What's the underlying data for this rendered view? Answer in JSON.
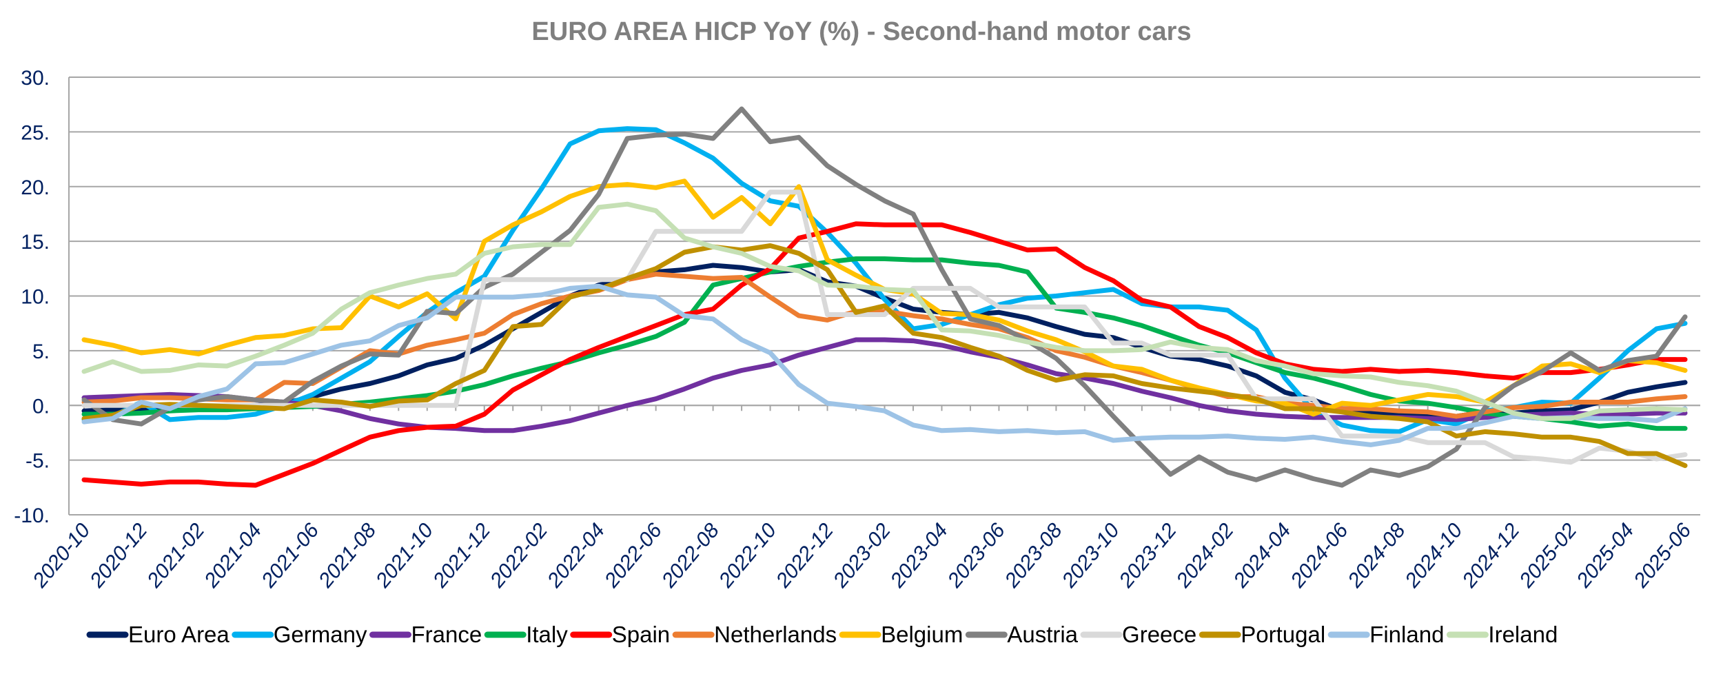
{
  "chart_data": {
    "type": "line",
    "title": "EURO AREA HICP YoY (%)  - Second-hand motor cars",
    "xlabel": "",
    "ylabel": "",
    "ylim": [
      -10,
      30
    ],
    "yticks": [
      30,
      25,
      20,
      15,
      10,
      5,
      0,
      -5,
      -10
    ],
    "ytick_labels": [
      "30.",
      "25.",
      "20.",
      "15.",
      "10.",
      "5.",
      "0.",
      "-5.",
      "-10."
    ],
    "grid": true,
    "legend_position": "bottom",
    "x": [
      "2020-10",
      "2020-11",
      "2020-12",
      "2021-01",
      "2021-02",
      "2021-03",
      "2021-04",
      "2021-05",
      "2021-06",
      "2021-07",
      "2021-08",
      "2021-09",
      "2021-10",
      "2021-11",
      "2021-12",
      "2022-01",
      "2022-02",
      "2022-03",
      "2022-04",
      "2022-05",
      "2022-06",
      "2022-07",
      "2022-08",
      "2022-09",
      "2022-10",
      "2022-11",
      "2022-12",
      "2023-01",
      "2023-02",
      "2023-03",
      "2023-04",
      "2023-05",
      "2023-06",
      "2023-07",
      "2023-08",
      "2023-09",
      "2023-10",
      "2023-11",
      "2023-12",
      "2024-01",
      "2024-02",
      "2024-03",
      "2024-04",
      "2024-05",
      "2024-06",
      "2024-07",
      "2024-08",
      "2024-09",
      "2024-10",
      "2024-11",
      "2024-12",
      "2025-01",
      "2025-02",
      "2025-03",
      "2025-04",
      "2025-05",
      "2025-06"
    ],
    "xtick_labels": [
      "2020-10",
      "2020-12",
      "2021-02",
      "2021-04",
      "2021-06",
      "2021-08",
      "2021-10",
      "2021-12",
      "2022-02",
      "2022-04",
      "2022-06",
      "2022-08",
      "2022-10",
      "2022-12",
      "2023-02",
      "2023-04",
      "2023-06",
      "2023-08",
      "2023-10",
      "2023-12",
      "2024-02",
      "2024-04",
      "2024-06",
      "2024-08",
      "2024-10",
      "2024-12",
      "2025-02",
      "2025-04",
      "2025-06"
    ],
    "series": [
      {
        "name": "Euro Area",
        "color": "#002060",
        "values": [
          -0.5,
          -0.4,
          -0.3,
          -0.3,
          -0.2,
          -0.1,
          0.0,
          0.2,
          0.8,
          1.5,
          2.0,
          2.7,
          3.7,
          4.3,
          5.5,
          7.0,
          8.5,
          10.0,
          11.0,
          11.5,
          12.2,
          12.4,
          12.8,
          12.6,
          12.2,
          12.4,
          11.3,
          10.9,
          9.8,
          8.8,
          8.5,
          8.3,
          8.5,
          8.0,
          7.2,
          6.5,
          6.2,
          5.3,
          4.5,
          4.2,
          3.6,
          2.7,
          1.2,
          0.5,
          -0.5,
          -0.6,
          -0.8,
          -0.9,
          -1.0,
          -0.6,
          -0.7,
          -0.5,
          -0.4,
          0.3,
          1.2,
          1.7,
          2.1
        ]
      },
      {
        "name": "Germany",
        "color": "#00B0F0",
        "values": [
          -1.3,
          -1.0,
          0.3,
          -1.3,
          -1.1,
          -1.1,
          -0.8,
          0.0,
          1.0,
          2.5,
          4.0,
          6.3,
          8.5,
          10.3,
          11.8,
          16.0,
          19.8,
          23.9,
          25.1,
          25.3,
          25.2,
          24.0,
          22.6,
          20.3,
          18.7,
          18.2,
          15.8,
          13.0,
          9.7,
          7.0,
          7.4,
          8.3,
          9.2,
          9.8,
          10.0,
          10.3,
          10.6,
          9.3,
          9.0,
          9.0,
          8.7,
          6.9,
          2.5,
          -0.5,
          -1.8,
          -2.3,
          -2.4,
          -1.3,
          -1.7,
          -0.5,
          -0.2,
          0.3,
          0.2,
          2.5,
          5.0,
          7.0,
          7.5
        ]
      },
      {
        "name": "France",
        "color": "#7030A0",
        "values": [
          0.7,
          0.8,
          0.9,
          1.0,
          0.9,
          0.8,
          0.5,
          0.3,
          0.0,
          -0.5,
          -1.2,
          -1.7,
          -2.0,
          -2.1,
          -2.3,
          -2.3,
          -1.9,
          -1.4,
          -0.7,
          0.0,
          0.6,
          1.5,
          2.5,
          3.2,
          3.7,
          4.6,
          5.3,
          6.0,
          6.0,
          5.9,
          5.5,
          4.9,
          4.4,
          3.7,
          2.9,
          2.5,
          2.0,
          1.3,
          0.7,
          0.0,
          -0.5,
          -0.8,
          -1.0,
          -1.1,
          -1.1,
          -1.1,
          -1.1,
          -1.2,
          -1.3,
          -1.1,
          -0.9,
          -0.8,
          -0.7,
          -0.8,
          -0.8,
          -0.7,
          -0.7
        ]
      },
      {
        "name": "Italy",
        "color": "#00B050",
        "values": [
          -0.8,
          -0.8,
          -0.7,
          -0.5,
          -0.4,
          -0.4,
          -0.3,
          -0.2,
          -0.1,
          0.1,
          0.3,
          0.6,
          0.9,
          1.3,
          1.9,
          2.7,
          3.4,
          4.0,
          4.8,
          5.5,
          6.3,
          7.6,
          11.0,
          11.6,
          12.2,
          12.7,
          13.1,
          13.4,
          13.4,
          13.3,
          13.3,
          13.0,
          12.8,
          12.2,
          8.9,
          8.5,
          8.0,
          7.3,
          6.4,
          5.5,
          4.8,
          3.9,
          3.0,
          2.5,
          1.8,
          1.0,
          0.4,
          0.2,
          -0.2,
          -0.7,
          -1.0,
          -1.2,
          -1.5,
          -1.9,
          -1.7,
          -2.1,
          -2.1
        ]
      },
      {
        "name": "Spain",
        "color": "#FF0000",
        "values": [
          -6.8,
          -7.0,
          -7.2,
          -7.0,
          -7.0,
          -7.2,
          -7.3,
          -6.3,
          -5.3,
          -4.1,
          -2.9,
          -2.3,
          -2.0,
          -1.9,
          -0.8,
          1.4,
          2.8,
          4.2,
          5.3,
          6.3,
          7.3,
          8.3,
          8.8,
          11.0,
          12.5,
          15.3,
          15.9,
          16.6,
          16.5,
          16.5,
          16.5,
          15.8,
          15.0,
          14.2,
          14.3,
          12.6,
          11.4,
          9.6,
          9.0,
          7.2,
          6.2,
          4.8,
          3.8,
          3.3,
          3.1,
          3.3,
          3.1,
          3.2,
          3.0,
          2.7,
          2.5,
          3.0,
          3.0,
          3.3,
          3.7,
          4.2,
          4.2
        ]
      },
      {
        "name": "Netherlands",
        "color": "#ED7D31",
        "values": [
          0.3,
          0.4,
          0.7,
          0.7,
          0.6,
          0.5,
          0.5,
          2.1,
          2.0,
          3.5,
          5.0,
          4.7,
          5.5,
          6.0,
          6.6,
          8.3,
          9.3,
          10.0,
          10.5,
          11.5,
          12.0,
          11.8,
          11.6,
          11.7,
          9.9,
          8.2,
          7.8,
          8.6,
          8.6,
          8.2,
          7.9,
          7.4,
          7.0,
          6.2,
          5.0,
          4.4,
          3.6,
          3.0,
          2.3,
          1.5,
          0.8,
          0.8,
          0.2,
          0.0,
          -0.3,
          -0.3,
          -0.5,
          -0.6,
          -1.0,
          -0.6,
          -0.2,
          -0.1,
          0.3,
          0.3,
          0.3,
          0.6,
          0.8
        ]
      },
      {
        "name": "Belgium",
        "color": "#FFC000",
        "values": [
          6.0,
          5.5,
          4.8,
          5.1,
          4.7,
          5.5,
          6.2,
          6.4,
          7.0,
          7.1,
          10.0,
          9.0,
          10.2,
          7.9,
          15.0,
          16.5,
          17.7,
          19.1,
          20.0,
          20.2,
          19.9,
          20.5,
          17.2,
          19.0,
          16.6,
          20.0,
          13.3,
          11.9,
          10.6,
          10.2,
          8.4,
          8.3,
          7.8,
          6.8,
          6.0,
          4.9,
          3.6,
          3.3,
          2.3,
          1.6,
          1.0,
          0.4,
          0.2,
          -0.8,
          0.2,
          0.0,
          0.5,
          1.0,
          0.8,
          0.3,
          1.8,
          3.6,
          3.8,
          3.0,
          4.1,
          3.9,
          3.2
        ]
      },
      {
        "name": "Austria",
        "color": "#808080",
        "values": [
          0.5,
          -1.3,
          -1.7,
          -0.2,
          0.5,
          0.8,
          0.5,
          0.3,
          2.2,
          3.6,
          4.7,
          4.6,
          8.6,
          8.4,
          10.8,
          12.0,
          14.0,
          16.0,
          19.3,
          24.4,
          24.7,
          24.8,
          24.4,
          27.1,
          24.1,
          24.5,
          21.9,
          20.2,
          18.7,
          17.5,
          12.4,
          7.9,
          7.3,
          5.9,
          4.3,
          1.8,
          -1.0,
          -3.7,
          -6.3,
          -4.7,
          -6.1,
          -6.8,
          -5.9,
          -6.7,
          -7.3,
          -5.9,
          -6.4,
          -5.6,
          -4.0,
          -0.2,
          1.8,
          3.1,
          4.8,
          3.2,
          4.1,
          4.5,
          8.1
        ]
      },
      {
        "name": "Greece",
        "color": "#D9D9D9",
        "values": [
          0.0,
          0.0,
          0.0,
          0.0,
          0.0,
          0.0,
          0.0,
          0.0,
          0.0,
          0.0,
          0.0,
          0.0,
          0.0,
          0.0,
          11.5,
          11.5,
          11.5,
          11.5,
          11.5,
          11.5,
          15.9,
          15.9,
          15.9,
          15.9,
          19.5,
          19.5,
          8.3,
          8.3,
          8.3,
          10.7,
          10.7,
          10.7,
          9.0,
          9.0,
          9.0,
          9.0,
          5.7,
          5.7,
          4.6,
          4.6,
          4.6,
          0.6,
          0.6,
          0.6,
          -2.8,
          -2.8,
          -2.8,
          -3.4,
          -3.4,
          -3.4,
          -4.7,
          -4.9,
          -5.2,
          -3.9,
          -4.2,
          -4.9,
          -4.5
        ]
      },
      {
        "name": "Portugal",
        "color": "#BF9000",
        "values": [
          -1.2,
          -0.9,
          0.0,
          0.1,
          0.0,
          -0.1,
          -0.2,
          -0.3,
          0.5,
          0.3,
          -0.1,
          0.4,
          0.5,
          2.0,
          3.2,
          7.2,
          7.4,
          9.9,
          10.6,
          11.6,
          12.5,
          14.0,
          14.5,
          14.2,
          14.6,
          13.9,
          12.4,
          8.5,
          9.1,
          6.6,
          6.2,
          5.3,
          4.5,
          3.2,
          2.3,
          2.8,
          2.7,
          2.0,
          1.6,
          1.3,
          1.0,
          0.6,
          -0.3,
          -0.3,
          -0.6,
          -1.0,
          -1.2,
          -1.5,
          -2.8,
          -2.4,
          -2.6,
          -2.9,
          -2.9,
          -3.3,
          -4.4,
          -4.4,
          -5.5
        ]
      },
      {
        "name": "Finland",
        "color": "#9DC3E6",
        "values": [
          -1.5,
          -1.2,
          0.3,
          -0.3,
          0.8,
          1.5,
          3.8,
          3.9,
          4.7,
          5.5,
          5.9,
          7.3,
          8.0,
          9.9,
          9.9,
          9.9,
          10.1,
          10.7,
          10.9,
          10.1,
          9.9,
          8.2,
          7.9,
          6.0,
          4.8,
          1.9,
          0.2,
          -0.1,
          -0.5,
          -1.8,
          -2.3,
          -2.2,
          -2.4,
          -2.3,
          -2.5,
          -2.4,
          -3.2,
          -3.0,
          -2.9,
          -2.9,
          -2.8,
          -3.0,
          -3.1,
          -2.9,
          -3.3,
          -3.6,
          -3.2,
          -2.1,
          -2.1,
          -1.6,
          -1.0,
          -1.2,
          -1.1,
          -1.2,
          -1.2,
          -1.4,
          -0.3
        ]
      },
      {
        "name": "Ireland",
        "color": "#C5E0B4",
        "values": [
          3.1,
          4.0,
          3.1,
          3.2,
          3.7,
          3.6,
          4.5,
          5.5,
          6.6,
          8.8,
          10.3,
          11.0,
          11.6,
          12.0,
          13.9,
          14.5,
          14.7,
          14.7,
          18.1,
          18.4,
          17.8,
          15.3,
          14.5,
          13.9,
          12.7,
          12.3,
          11.0,
          10.9,
          10.6,
          10.5,
          6.9,
          6.8,
          6.4,
          5.8,
          5.3,
          5.0,
          5.0,
          5.1,
          5.8,
          5.3,
          5.1,
          4.1,
          3.6,
          2.9,
          2.7,
          2.6,
          2.1,
          1.8,
          1.3,
          0.3,
          -0.7,
          -1.2,
          -1.2,
          -0.5,
          -0.4,
          -0.3,
          -0.4
        ]
      }
    ]
  }
}
